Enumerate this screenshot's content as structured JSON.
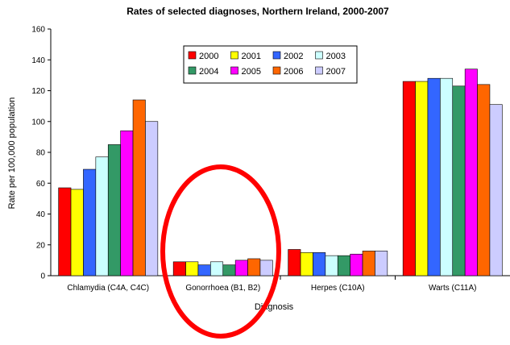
{
  "chart_data": {
    "type": "bar",
    "title": "Rates of selected diagnoses, Northern Ireland, 2000-2007",
    "xlabel": "Diagnosis",
    "ylabel": "Rate per 100,000 population",
    "ylim": [
      0,
      160
    ],
    "yticks": [
      0,
      20,
      40,
      60,
      80,
      100,
      120,
      140,
      160
    ],
    "grid": false,
    "legend_position": "top-center",
    "categories": [
      "Chlamydia (C4A, C4C)",
      "Gonorrhoea (B1, B2)",
      "Herpes (C10A)",
      "Warts (C11A)"
    ],
    "series": [
      {
        "name": "2000",
        "color": "#ff0000",
        "values": [
          57,
          9,
          17,
          126
        ]
      },
      {
        "name": "2001",
        "color": "#ffff00",
        "values": [
          56,
          9,
          15,
          126
        ]
      },
      {
        "name": "2002",
        "color": "#3366ff",
        "values": [
          69,
          7,
          15,
          128
        ]
      },
      {
        "name": "2003",
        "color": "#ccffff",
        "values": [
          77,
          9,
          13,
          128
        ]
      },
      {
        "name": "2004",
        "color": "#339966",
        "values": [
          85,
          7,
          13,
          123
        ]
      },
      {
        "name": "2005",
        "color": "#ff00ff",
        "values": [
          94,
          10,
          14,
          134
        ]
      },
      {
        "name": "2006",
        "color": "#ff6600",
        "values": [
          114,
          11,
          16,
          124
        ]
      },
      {
        "name": "2007",
        "color": "#ccccff",
        "values": [
          100,
          10,
          16,
          111
        ]
      }
    ],
    "highlight": {
      "category": "Gonorrhoea (B1, B2)",
      "shape": "ellipse",
      "color": "#ff0000"
    }
  }
}
